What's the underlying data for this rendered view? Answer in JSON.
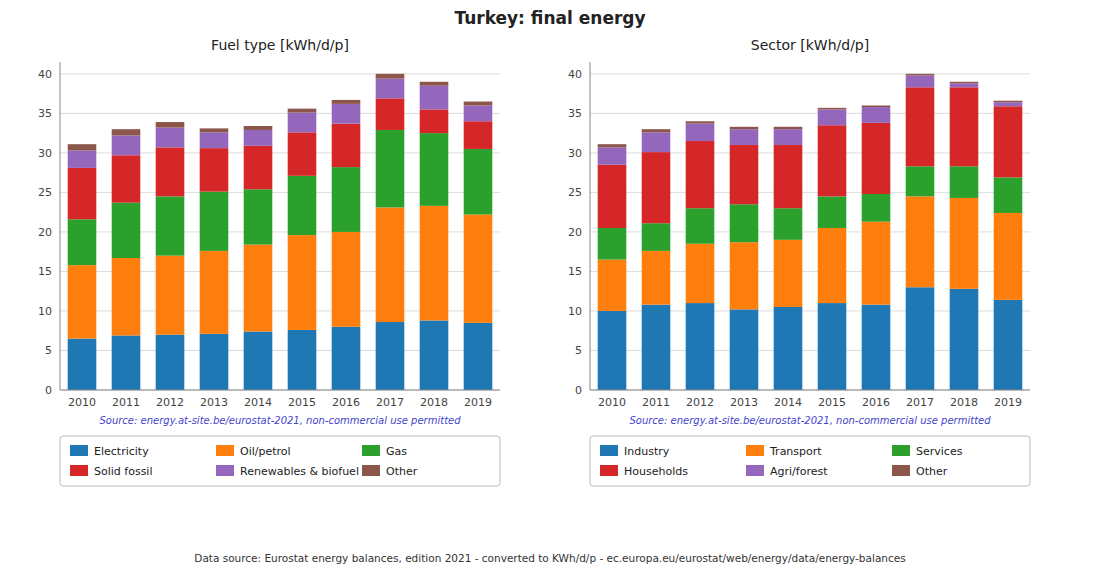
{
  "title": "Turkey: final energy",
  "annotations": [
    "Data source: Eurostat energy balances, edition 2021 - converted to KWh/d/p - ec.europa.eu/eurostat/web/energy/data/energy-balances"
  ],
  "chart_data": [
    {
      "type": "bar",
      "title": "Fuel type [kWh/d/p]",
      "stacked": true,
      "grid": true,
      "legend": "bottom",
      "categories": [
        "2010",
        "2011",
        "2012",
        "2013",
        "2014",
        "2015",
        "2016",
        "2017",
        "2018",
        "2019"
      ],
      "series": [
        {
          "name": "Electricity",
          "color": "#1f77b4",
          "values": [
            6.5,
            6.9,
            7.0,
            7.1,
            7.4,
            7.6,
            8.0,
            8.6,
            8.8,
            8.5
          ]
        },
        {
          "name": "Oil/petrol",
          "color": "#ff7f0e",
          "values": [
            9.3,
            9.8,
            10.0,
            10.5,
            11.0,
            12.0,
            12.0,
            14.5,
            14.5,
            13.7
          ]
        },
        {
          "name": "Gas",
          "color": "#2ca02c",
          "values": [
            5.8,
            7.0,
            7.5,
            7.5,
            7.0,
            7.5,
            8.2,
            9.8,
            9.2,
            8.3
          ]
        },
        {
          "name": "Solid fossil",
          "color": "#d62728",
          "values": [
            6.5,
            6.0,
            6.2,
            5.5,
            5.5,
            5.5,
            5.5,
            4.0,
            3.0,
            3.5
          ]
        },
        {
          "name": "Renewables & biofuel",
          "color": "#9467bd",
          "values": [
            2.2,
            2.5,
            2.5,
            2.0,
            2.0,
            2.5,
            2.5,
            2.5,
            3.0,
            2.0
          ]
        },
        {
          "name": "Other",
          "color": "#8c564b",
          "values": [
            0.8,
            0.8,
            0.7,
            0.5,
            0.5,
            0.5,
            0.5,
            0.6,
            0.5,
            0.5
          ]
        }
      ],
      "annotations": [
        "Source: energy.at-site.be/eurostat-2021, non-commercial use permitted"
      ],
      "ylim": [
        0,
        41.5
      ],
      "yticks": [
        0,
        5,
        10,
        15,
        20,
        25,
        30,
        35,
        40
      ]
    },
    {
      "type": "bar",
      "title": "Sector [kWh/d/p]",
      "stacked": true,
      "grid": true,
      "legend": "bottom",
      "categories": [
        "2010",
        "2011",
        "2012",
        "2013",
        "2014",
        "2015",
        "2016",
        "2017",
        "2018",
        "2019"
      ],
      "series": [
        {
          "name": "Industry",
          "color": "#1f77b4",
          "values": [
            10.0,
            10.8,
            11.0,
            10.2,
            10.5,
            11.0,
            10.8,
            13.0,
            12.8,
            11.4
          ]
        },
        {
          "name": "Transport",
          "color": "#ff7f0e",
          "values": [
            6.5,
            6.8,
            7.5,
            8.5,
            8.5,
            9.5,
            10.5,
            11.5,
            11.5,
            11.0
          ]
        },
        {
          "name": "Services",
          "color": "#2ca02c",
          "values": [
            4.0,
            3.5,
            4.5,
            4.8,
            4.0,
            4.0,
            3.5,
            3.8,
            4.0,
            4.5
          ]
        },
        {
          "name": "Households",
          "color": "#d62728",
          "values": [
            8.0,
            9.0,
            8.5,
            7.5,
            8.0,
            9.0,
            9.0,
            10.0,
            10.0,
            9.0
          ]
        },
        {
          "name": "Agri/forest",
          "color": "#9467bd",
          "values": [
            2.2,
            2.5,
            2.2,
            2.0,
            2.0,
            2.0,
            2.0,
            1.5,
            0.5,
            0.5
          ]
        },
        {
          "name": "Other",
          "color": "#8c564b",
          "values": [
            0.4,
            0.4,
            0.3,
            0.3,
            0.3,
            0.2,
            0.2,
            0.2,
            0.2,
            0.2
          ]
        }
      ],
      "annotations": [
        "Source: energy.at-site.be/eurostat-2021, non-commercial use permitted"
      ],
      "ylim": [
        0,
        41.5
      ],
      "yticks": [
        0,
        5,
        10,
        15,
        20,
        25,
        30,
        35,
        40
      ]
    }
  ]
}
